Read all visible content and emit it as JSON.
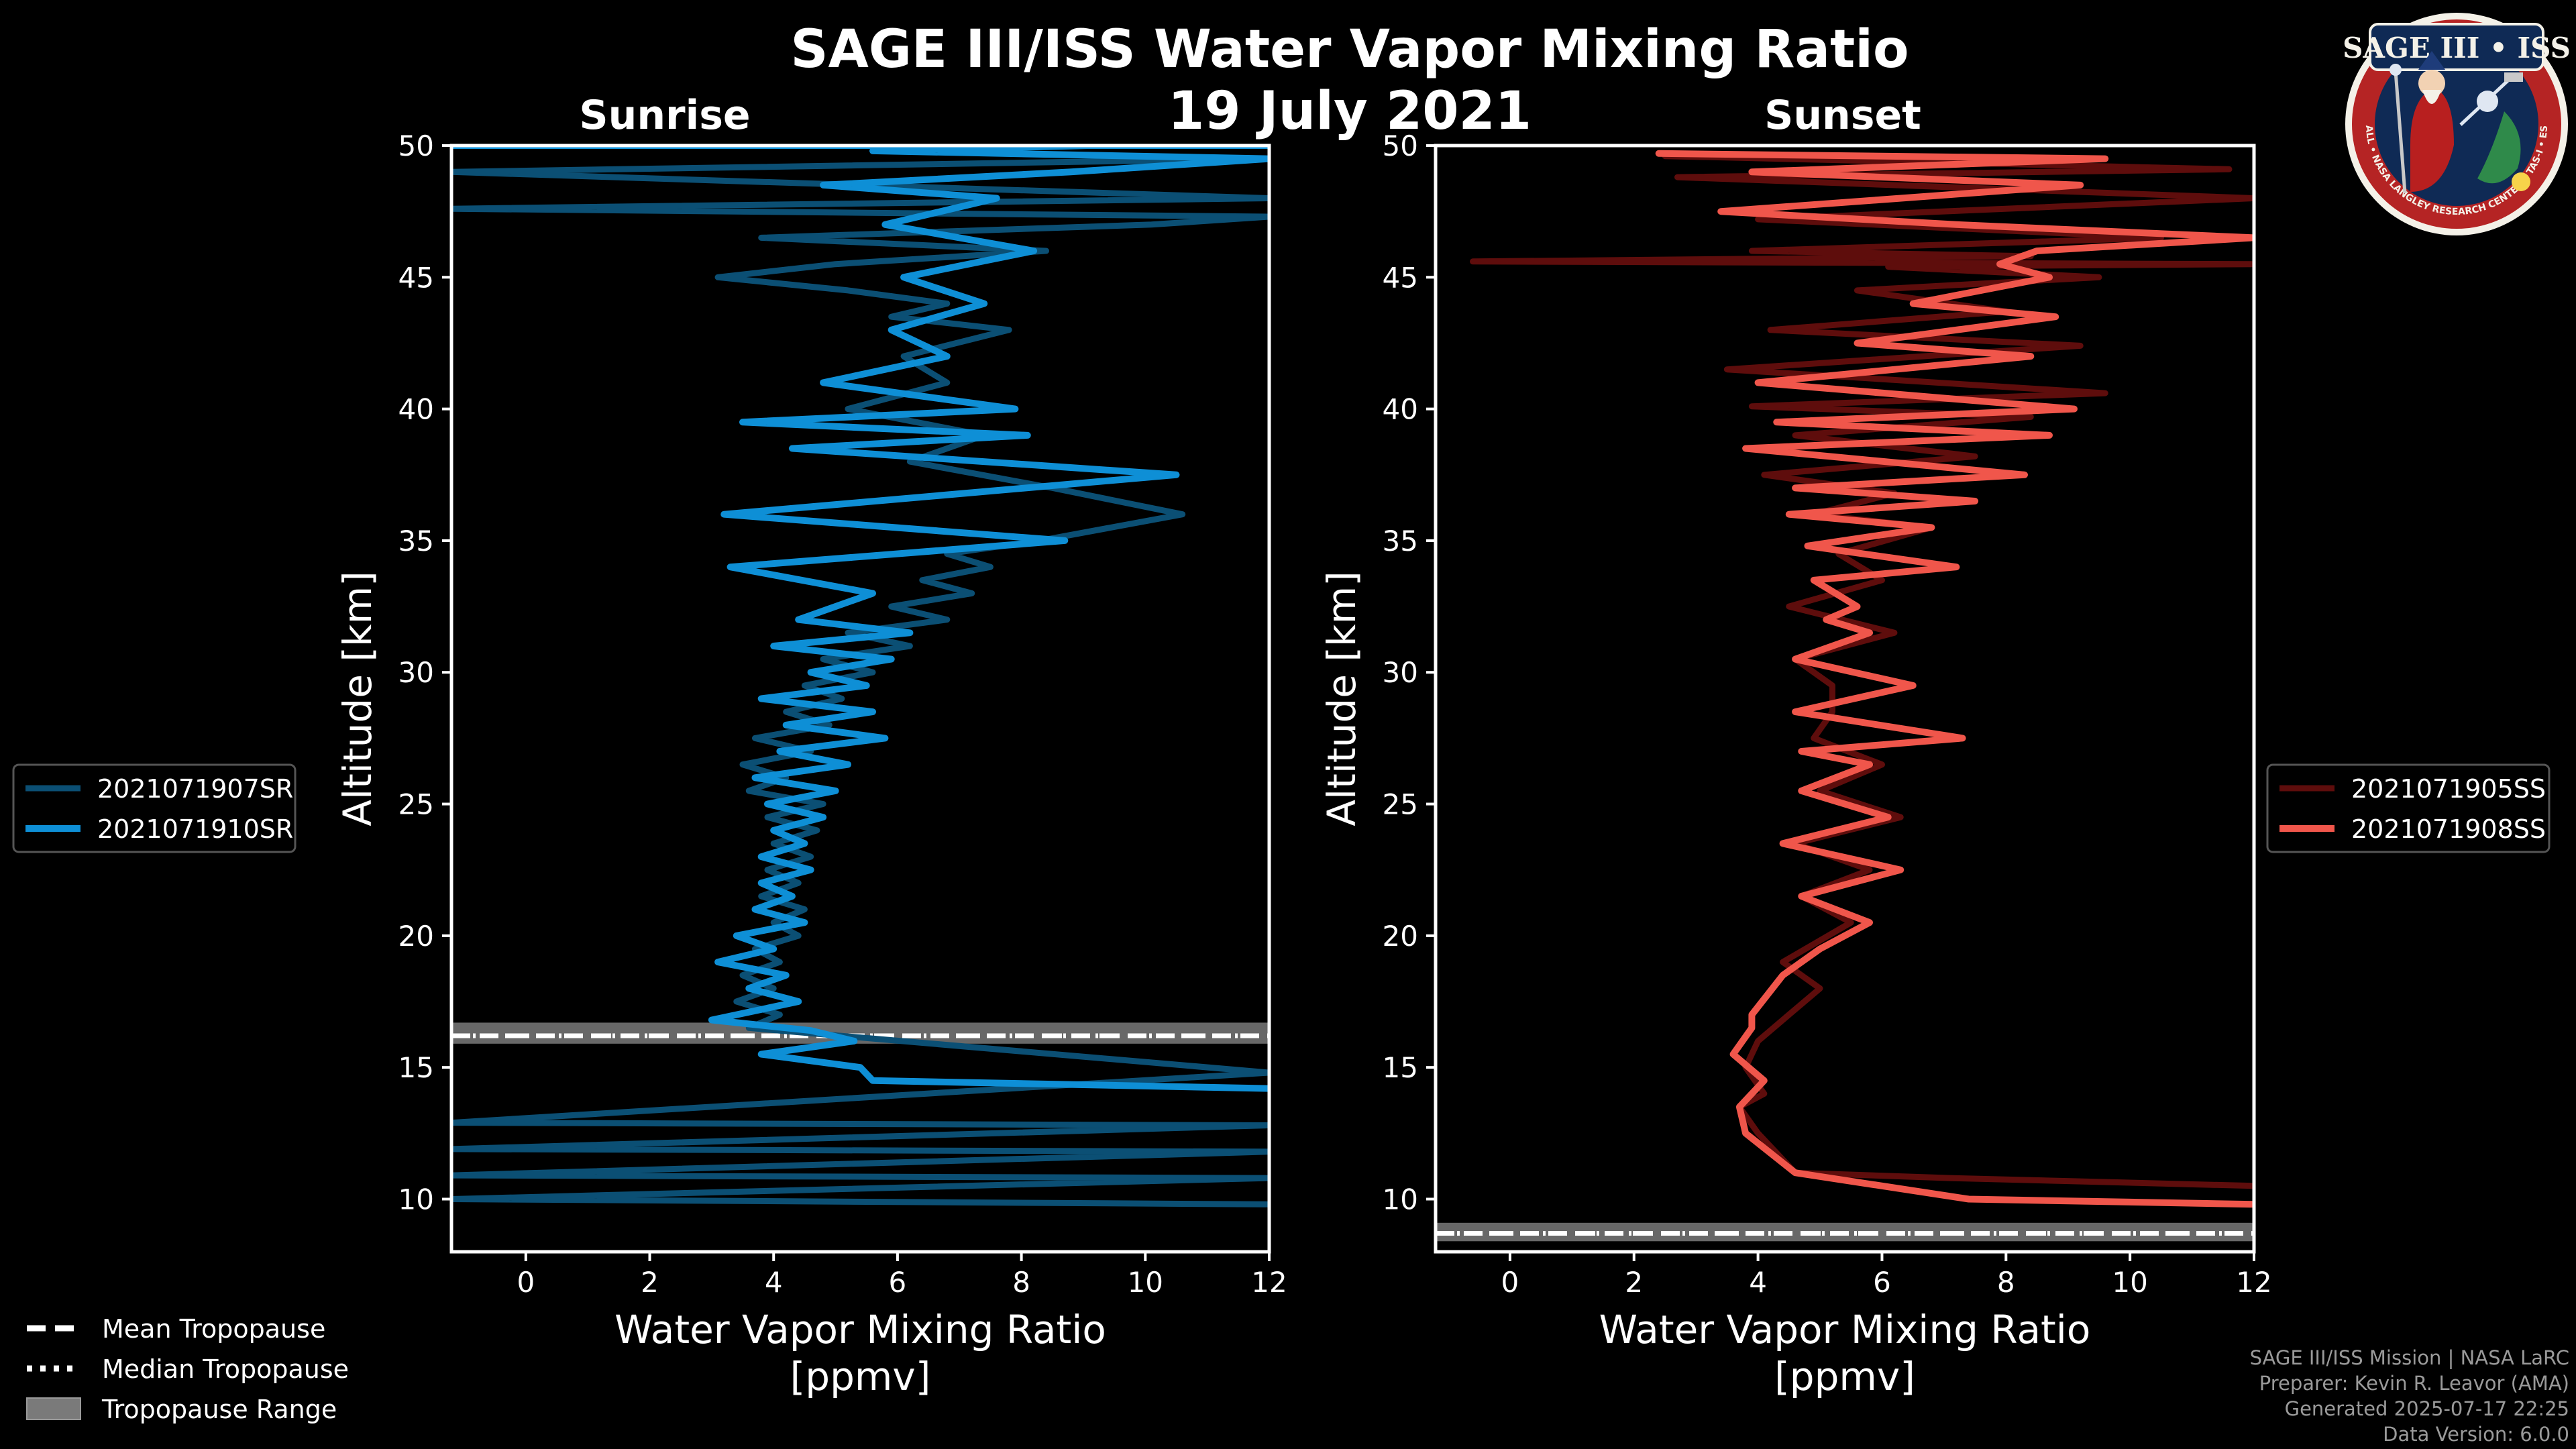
{
  "title": "SAGE III/ISS Water Vapor Mixing Ratio",
  "date": "19 July 2021",
  "logo": {
    "name": "SAGE III • ISS",
    "ring_text": "BALL • NASA LANGLEY RESEARCH CENTER • TAS-I • ESA"
  },
  "credits": [
    "SAGE III/ISS Mission | NASA LaRC",
    "Preparer: Kevin R. Leavor (AMA)",
    "Generated 2025-07-17 22:25",
    "Data Version: 6.0.0"
  ],
  "tropopause_legend": [
    {
      "style": "dashed",
      "label": "Mean Tropopause"
    },
    {
      "style": "dotted",
      "label": "Median Tropopause"
    },
    {
      "style": "band",
      "label": "Tropopause Range"
    }
  ],
  "chart_data": [
    {
      "type": "line",
      "title": "Sunrise",
      "xlabel": "Water Vapor Mixing Ratio\n[ppmv]",
      "ylabel": "Altitude [km]",
      "xlim": [
        -1.2,
        12
      ],
      "ylim": [
        8,
        50
      ],
      "xticks": [
        0,
        2,
        4,
        6,
        8,
        10,
        12
      ],
      "yticks": [
        10,
        15,
        20,
        25,
        30,
        35,
        40,
        45,
        50
      ],
      "tropopause": {
        "mean": 16.2,
        "median": 16.2,
        "range": [
          15.9,
          16.7
        ]
      },
      "series": [
        {
          "name": "2021071907SR",
          "color": "#0b4f74",
          "width": 9,
          "x": [
            12,
            -1.2,
            12,
            -1.2,
            12,
            -1.2,
            12,
            -1.2,
            12,
            3.6,
            4.1,
            3.4,
            4.0,
            3.5,
            4.1,
            3.7,
            4.4,
            4.0,
            4.5,
            3.8,
            4.4,
            3.9,
            4.6,
            4.0,
            4.7,
            3.9,
            4.8,
            3.6,
            4.2,
            3.5,
            4.6,
            3.7,
            4.9,
            4.2,
            5.1,
            4.5,
            5.6,
            4.8,
            6.2,
            5.2,
            6.8,
            5.9,
            7.2,
            6.4,
            7.5,
            6.8,
            8.3,
            10.6,
            8.5,
            6.2,
            7.4,
            5.2,
            6.8,
            6.1,
            7.8,
            5.9,
            6.8,
            5.2,
            3.1,
            5.0,
            8.4,
            3.8,
            10.1,
            12,
            -1.2,
            12,
            -1.2,
            12
          ],
          "y": [
            9.8,
            10,
            10.8,
            10.9,
            11.8,
            11.9,
            12.8,
            12.9,
            14.8,
            16.5,
            17,
            17.5,
            18,
            18.5,
            19,
            19.5,
            20,
            20.5,
            21,
            21.5,
            22,
            22.5,
            23,
            23.5,
            24,
            24.5,
            25,
            25.5,
            26,
            26.5,
            27,
            27.5,
            28,
            28.5,
            29,
            29.5,
            30,
            30.5,
            31,
            31.5,
            32,
            32.5,
            33,
            33.5,
            34,
            34.5,
            35,
            36,
            37,
            38,
            39,
            40,
            41,
            42,
            43,
            43.5,
            44,
            44.5,
            45,
            45.5,
            46,
            46.5,
            47,
            47.3,
            47.6,
            48,
            49,
            49.5
          ]
        },
        {
          "name": "2021071910SR",
          "color": "#0e8fd6",
          "width": 10,
          "x": [
            12,
            5.6,
            5.4,
            3.8,
            5.3,
            4.6,
            3.0,
            4.4,
            3.6,
            4.2,
            3.1,
            4.0,
            3.4,
            4.5,
            3.7,
            4.3,
            3.8,
            4.6,
            3.8,
            4.5,
            4.0,
            4.8,
            3.9,
            5.0,
            3.7,
            5.2,
            4.1,
            5.8,
            4.2,
            5.6,
            3.8,
            5.5,
            4.6,
            5.9,
            4.0,
            6.2,
            4.4,
            5.6,
            3.3,
            8.7,
            3.2,
            10.5,
            4.3,
            8.1,
            3.5,
            7.9,
            4.8,
            6.8,
            5.9,
            7.4,
            6.1,
            8.2,
            5.8,
            7.6,
            4.8,
            8.8,
            12,
            5.6,
            9.1,
            4.8,
            8.7,
            12,
            -1.2,
            12
          ],
          "y": [
            14.2,
            14.5,
            15.0,
            15.5,
            16.0,
            16.4,
            16.8,
            17.5,
            18.0,
            18.5,
            19.0,
            19.5,
            20.0,
            20.5,
            21.0,
            21.5,
            22.0,
            22.5,
            23.0,
            23.5,
            24.0,
            24.5,
            25.0,
            25.5,
            26.0,
            26.5,
            27.0,
            27.5,
            28.0,
            28.5,
            29.0,
            29.5,
            30.0,
            30.5,
            31.0,
            31.5,
            32.0,
            33.0,
            34.0,
            35.0,
            36.0,
            37.5,
            38.5,
            39.0,
            39.5,
            40.0,
            41.0,
            42.0,
            43.0,
            44.0,
            45.0,
            46.0,
            47.0,
            48.0,
            48.5,
            49.0,
            49.5,
            49.8,
            50.0,
            50.0,
            50.0,
            50.0,
            50.0,
            50.0
          ]
        }
      ]
    },
    {
      "type": "line",
      "title": "Sunset",
      "xlabel": "Water Vapor Mixing Ratio\n[ppmv]",
      "ylabel": "Altitude [km]",
      "xlim": [
        -1.2,
        12
      ],
      "ylim": [
        8,
        50
      ],
      "xticks": [
        0,
        2,
        4,
        6,
        8,
        10,
        12
      ],
      "yticks": [
        10,
        15,
        20,
        25,
        30,
        35,
        40,
        45,
        50
      ],
      "tropopause": {
        "mean": 8.7,
        "median": 8.7,
        "range": [
          8.4,
          9.1
        ]
      },
      "series": [
        {
          "name": "2021071905SS",
          "color": "#5e0d0c",
          "width": 9,
          "x": [
            12,
            7.1,
            4.6,
            4.0,
            3.7,
            4.1,
            3.8,
            4.0,
            4.5,
            5.0,
            4.4,
            5.5,
            4.7,
            5.8,
            4.6,
            6.3,
            5.0,
            6.0,
            4.9,
            5.2,
            5.2,
            4.6,
            6.2,
            4.5,
            6.0,
            5.3,
            6.8,
            4.9,
            6.2,
            4.1,
            7.5,
            4.6,
            8.4,
            3.9,
            9.6,
            3.5,
            9.2,
            4.2,
            8.0,
            5.6,
            9.5,
            6.1,
            12,
            -0.6,
            8.4,
            3.9,
            10.5,
            4.0,
            12,
            2.7,
            11.6,
            2.5
          ],
          "y": [
            10.5,
            10.8,
            11.0,
            12.5,
            13.5,
            14.0,
            15.0,
            16.0,
            17.0,
            18.0,
            19.0,
            20.5,
            21.5,
            22.5,
            23.5,
            24.5,
            25.5,
            26.5,
            27.5,
            28.5,
            29.5,
            30.5,
            31.5,
            32.5,
            33.5,
            34.5,
            35.5,
            36.0,
            36.8,
            37.5,
            38.2,
            39.0,
            39.7,
            40.1,
            40.6,
            41.5,
            42.4,
            43.0,
            43.7,
            44.5,
            45.0,
            45.4,
            45.5,
            45.6,
            45.8,
            46.0,
            46.5,
            47.2,
            48.0,
            48.8,
            49.1,
            49.6
          ]
        },
        {
          "name": "2021071908SS",
          "color": "#f0564b",
          "width": 10,
          "x": [
            12,
            7.4,
            4.6,
            3.8,
            3.7,
            4.1,
            3.6,
            3.9,
            3.9,
            4.4,
            5.0,
            5.8,
            4.7,
            6.3,
            4.4,
            6.1,
            4.7,
            5.8,
            4.7,
            7.3,
            4.6,
            6.5,
            4.6,
            5.8,
            5.1,
            5.6,
            4.9,
            7.2,
            4.8,
            6.8,
            4.5,
            7.5,
            4.6,
            8.3,
            3.8,
            8.7,
            4.3,
            9.1,
            4.0,
            8.4,
            5.6,
            8.8,
            6.5,
            8.7,
            7.9,
            8.5,
            12,
            7.2,
            3.4,
            9.2,
            3.9,
            9.6,
            2.4
          ],
          "y": [
            9.8,
            10.0,
            11.0,
            12.5,
            13.5,
            14.5,
            15.5,
            16.5,
            17.0,
            18.5,
            19.5,
            20.5,
            21.5,
            22.5,
            23.5,
            24.5,
            25.5,
            26.5,
            27.0,
            27.5,
            28.5,
            29.5,
            30.5,
            31.5,
            32.0,
            32.5,
            33.5,
            34.0,
            34.8,
            35.5,
            36.0,
            36.5,
            37.0,
            37.5,
            38.5,
            39.0,
            39.5,
            40.0,
            41.0,
            42.0,
            42.5,
            43.5,
            44.0,
            45.0,
            45.5,
            46.0,
            46.5,
            47.0,
            47.5,
            48.5,
            49.0,
            49.5,
            49.7
          ]
        }
      ]
    }
  ]
}
